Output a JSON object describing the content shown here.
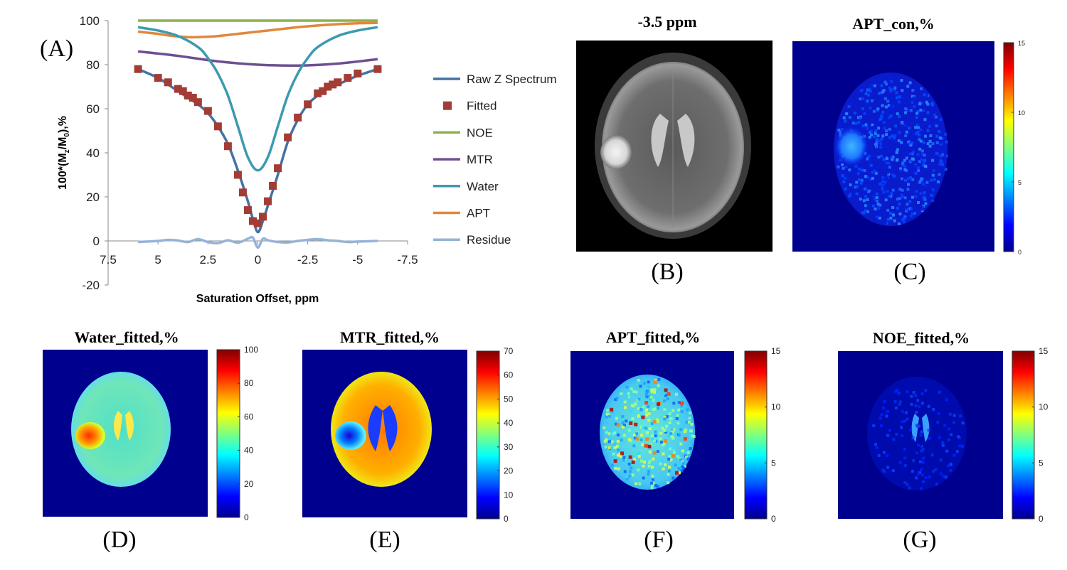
{
  "panels": {
    "A": "(A)",
    "B": "(B)",
    "C": "(C)",
    "D": "(D)",
    "E": "(E)",
    "F": "(F)",
    "G": "(G)"
  },
  "chart_data": [
    {
      "type": "line",
      "title": "",
      "xlabel": "Saturation  Offset, ppm",
      "ylabel_parts": [
        "100*(M",
        "z",
        "/M",
        "0",
        "),%"
      ],
      "xlim": [
        7.5,
        -7.5
      ],
      "ylim": [
        -20,
        100
      ],
      "xticks": [
        7.5,
        5,
        2.5,
        0,
        -2.5,
        -5,
        -7.5
      ],
      "xtick_labels": [
        "7.5",
        "5",
        "2.5",
        "0",
        "-2.5",
        "-5",
        "-7.5"
      ],
      "yticks": [
        100,
        80,
        60,
        40,
        20,
        0,
        -20
      ],
      "ytick_labels": [
        "100",
        "80",
        "60",
        "40",
        "20",
        "0",
        "-20"
      ],
      "legend_position": "right",
      "series": [
        {
          "name": "Raw Z Spectrum",
          "color": "#4472a4",
          "kind": "line",
          "x": [
            6,
            5,
            4.5,
            4,
            3.5,
            3,
            2.5,
            2,
            1.5,
            1,
            0.5,
            0.25,
            0,
            -0.25,
            -0.5,
            -1,
            -1.5,
            -2,
            -2.5,
            -3,
            -3.5,
            -4,
            -4.5,
            -5,
            -6
          ],
          "y": [
            78,
            74,
            71,
            68,
            65,
            62,
            58,
            52,
            44,
            32,
            18,
            10,
            4,
            9,
            16,
            30,
            45,
            55,
            62,
            66,
            69,
            71,
            73,
            75,
            78
          ]
        },
        {
          "name": "Fitted",
          "color": "#a33c35",
          "kind": "marker",
          "x": [
            6,
            5,
            4.5,
            4,
            3.75,
            3.5,
            3.25,
            3,
            2.5,
            2,
            1.5,
            1,
            0.75,
            0.5,
            0.25,
            0,
            -0.25,
            -0.5,
            -0.75,
            -1,
            -1.5,
            -2,
            -2.5,
            -3,
            -3.25,
            -3.5,
            -3.75,
            -4,
            -4.5,
            -5,
            -6
          ],
          "y": [
            78,
            74,
            72,
            69,
            68,
            66,
            65,
            63,
            59,
            52,
            43,
            30,
            22,
            14,
            9,
            8,
            11,
            18,
            25,
            33,
            47,
            56,
            62,
            67,
            68,
            70,
            71,
            72,
            74,
            76,
            78
          ]
        },
        {
          "name": "NOE",
          "color": "#8eb04c",
          "kind": "line",
          "x": [
            6,
            3,
            0,
            -3,
            -6
          ],
          "y": [
            100,
            100,
            100,
            100,
            100
          ]
        },
        {
          "name": "MTR",
          "color": "#6e4f91",
          "kind": "line",
          "x": [
            6,
            4,
            2,
            0,
            -2,
            -4,
            -6
          ],
          "y": [
            86,
            84,
            81.5,
            80,
            79.6,
            80.5,
            82.5
          ]
        },
        {
          "name": "Water",
          "color": "#3c9ab0",
          "kind": "line",
          "x": [
            6,
            5,
            4,
            3,
            2.5,
            2,
            1.5,
            1,
            0.5,
            0,
            -0.5,
            -1,
            -1.5,
            -2,
            -2.5,
            -3,
            -4,
            -5,
            -6
          ],
          "y": [
            97,
            95.5,
            93,
            88,
            83,
            76,
            66,
            52,
            38,
            32,
            38,
            52,
            66,
            76,
            83,
            88,
            93,
            95.5,
            97
          ]
        },
        {
          "name": "APT",
          "color": "#e0883b",
          "kind": "line",
          "x": [
            6,
            5,
            4.5,
            4,
            3.5,
            3,
            2.5,
            2,
            1,
            0,
            -1,
            -2,
            -3,
            -4,
            -5,
            -6
          ],
          "y": [
            95,
            94,
            93.3,
            92.8,
            92.5,
            92.5,
            92.7,
            93,
            94,
            95,
            96,
            97,
            97.8,
            98.4,
            98.8,
            99
          ]
        },
        {
          "name": "Residue",
          "color": "#95b3d7",
          "kind": "line",
          "x": [
            6,
            5,
            4.5,
            4,
            3.5,
            3,
            2.5,
            2,
            1.5,
            1,
            0.5,
            0.25,
            0,
            -0.25,
            -0.5,
            -1,
            -1.5,
            -2,
            -2.5,
            -3,
            -3.5,
            -4,
            -4.5,
            -5,
            -6
          ],
          "y": [
            -0.5,
            0,
            0.5,
            0.2,
            -0.5,
            0.8,
            -0.5,
            -1,
            0.3,
            -0.8,
            1,
            1.5,
            -3,
            1,
            0.3,
            -0.5,
            -0.7,
            0,
            0.5,
            0.8,
            0.3,
            0,
            -0.5,
            -0.3,
            0
          ]
        }
      ]
    },
    {
      "type": "heatmap",
      "panel": "B",
      "title": "-3.5 ppm",
      "colormap": "gray"
    },
    {
      "type": "heatmap",
      "panel": "C",
      "title": "APT_con,%",
      "colormap": "jet",
      "colorbar_ticks": [
        0,
        5,
        10,
        15
      ],
      "colorbar_labels": [
        "0",
        "5",
        "10",
        "15"
      ]
    },
    {
      "type": "heatmap",
      "panel": "D",
      "title": "Water_fitted,%",
      "colormap": "jet",
      "colorbar_ticks": [
        0,
        20,
        40,
        60,
        80,
        100
      ],
      "colorbar_labels": [
        "0",
        "20",
        "40",
        "60",
        "80",
        "100"
      ]
    },
    {
      "type": "heatmap",
      "panel": "E",
      "title": "MTR_fitted,%",
      "colormap": "jet",
      "colorbar_ticks": [
        0,
        10,
        20,
        30,
        40,
        50,
        60,
        70
      ],
      "colorbar_labels": [
        "0",
        "10",
        "20",
        "30",
        "40",
        "50",
        "60",
        "70"
      ]
    },
    {
      "type": "heatmap",
      "panel": "F",
      "title": "APT_fitted,%",
      "colormap": "jet",
      "colorbar_ticks": [
        0,
        5,
        10,
        15
      ],
      "colorbar_labels": [
        "0",
        "5",
        "10",
        "15"
      ]
    },
    {
      "type": "heatmap",
      "panel": "G",
      "title": "NOE_fitted,%",
      "colormap": "jet",
      "colorbar_ticks": [
        0,
        5,
        10,
        15
      ],
      "colorbar_labels": [
        "0",
        "5",
        "10",
        "15"
      ]
    }
  ]
}
